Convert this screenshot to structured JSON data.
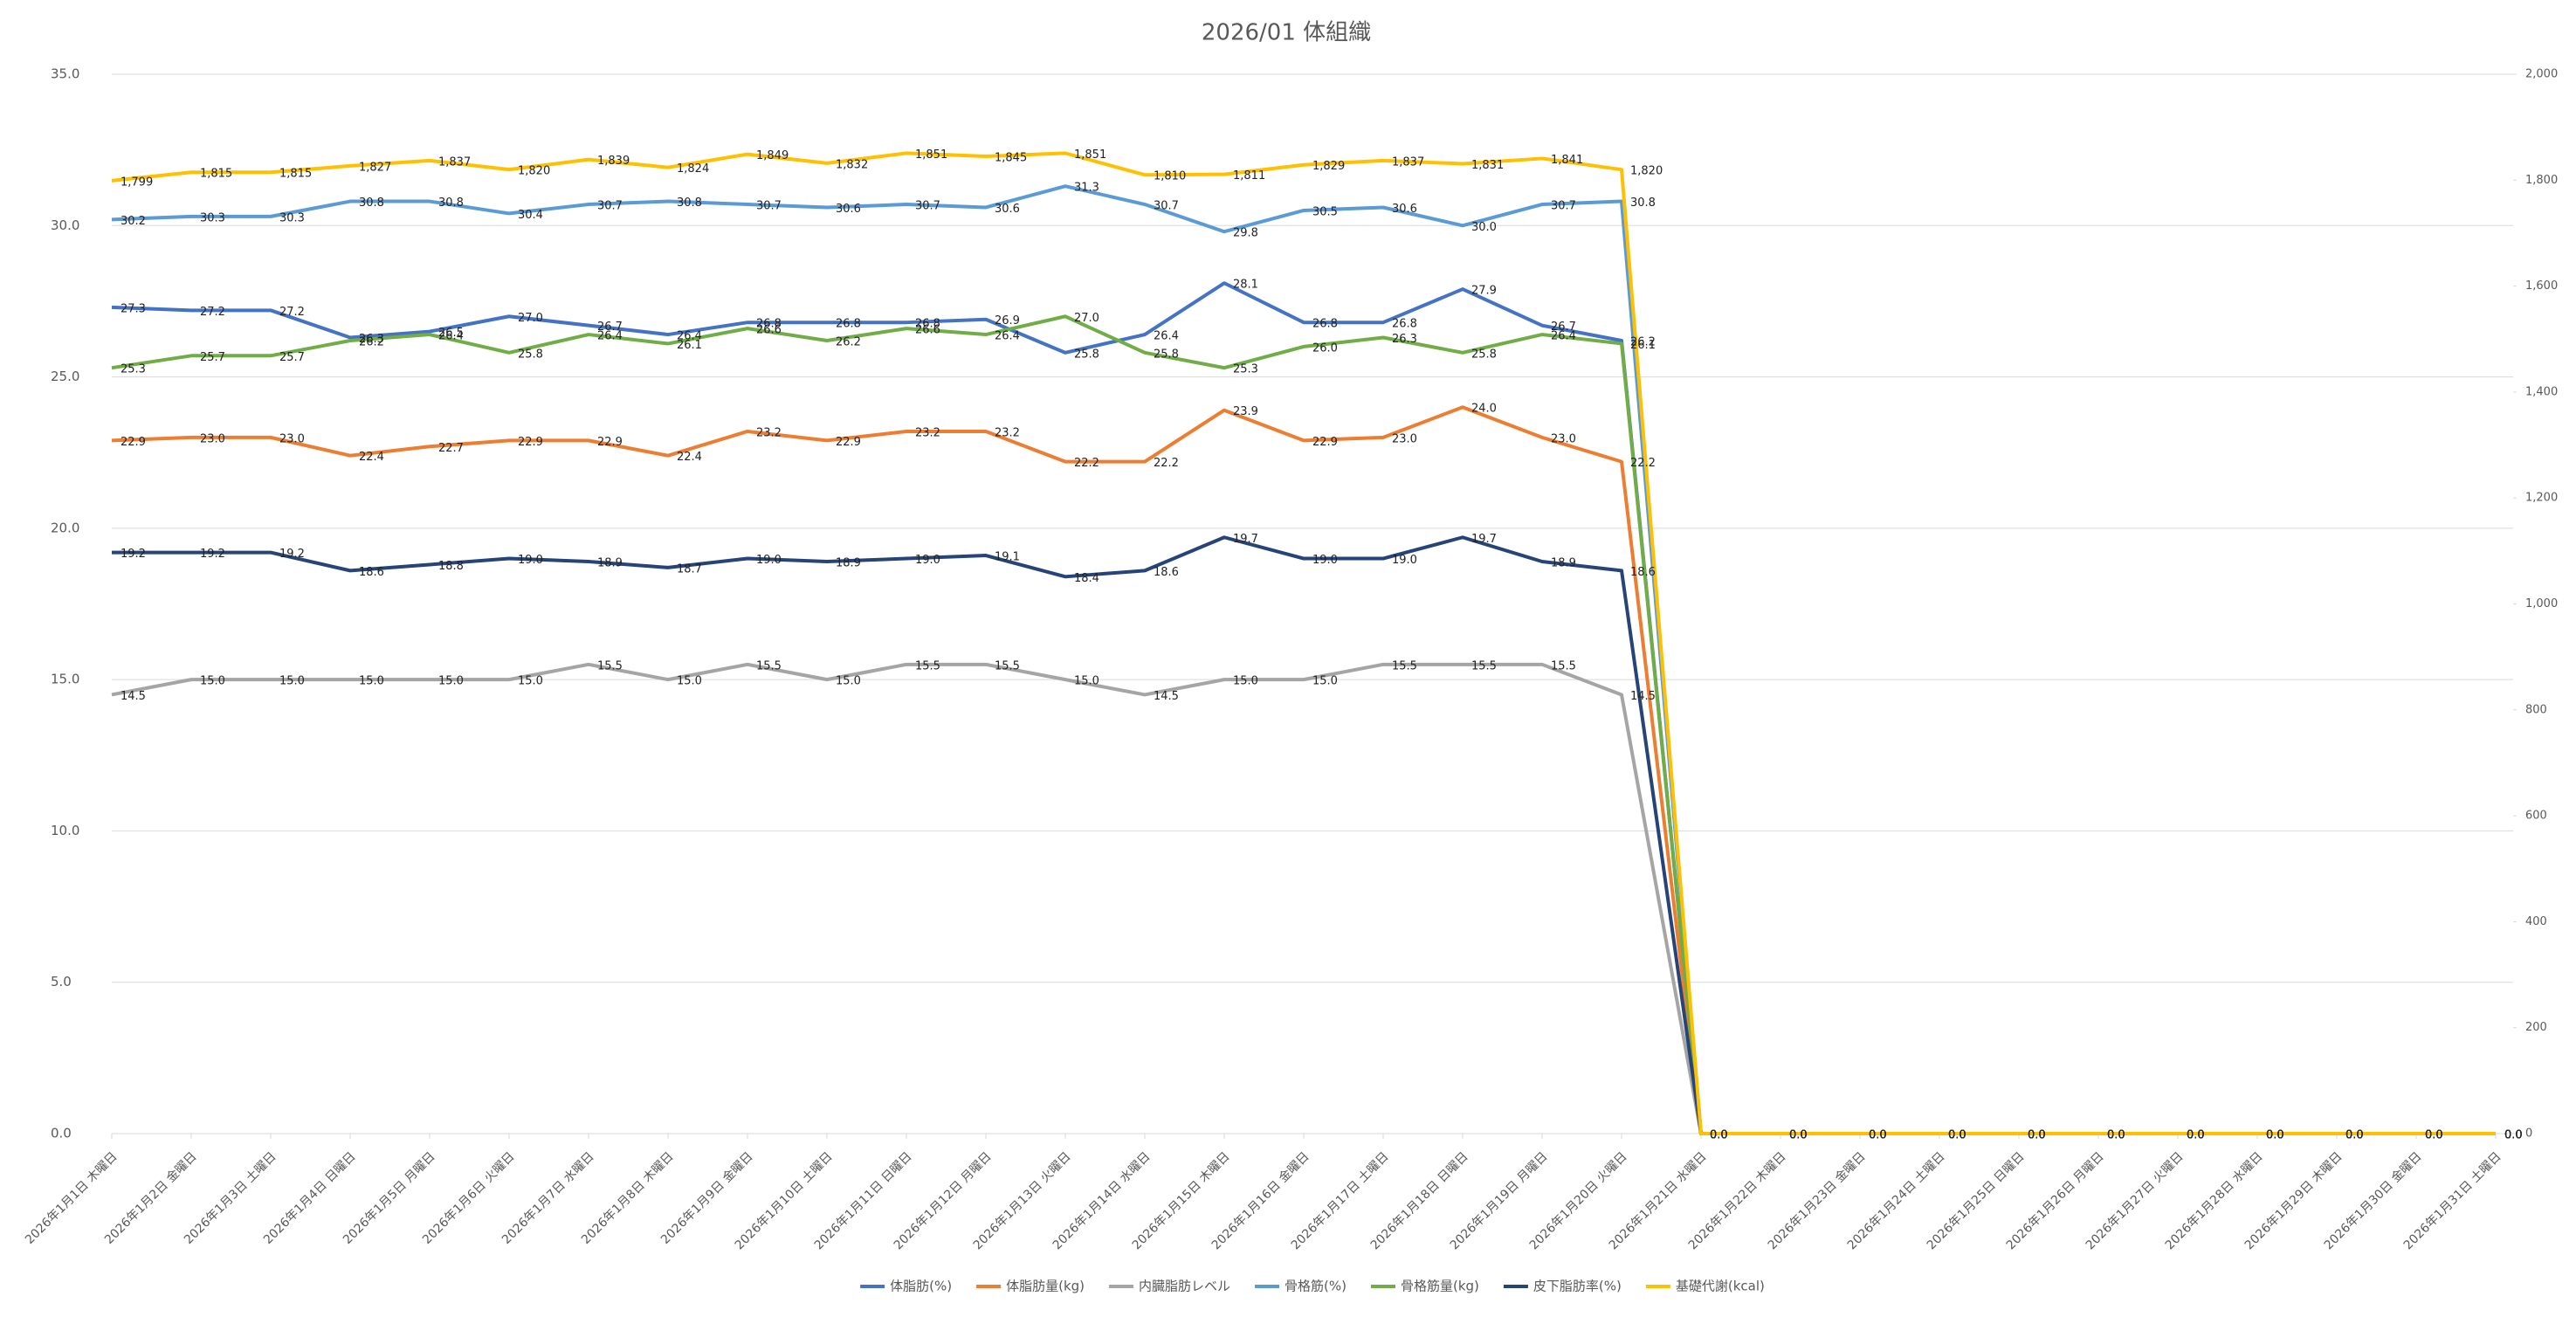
{
  "chart_data": {
    "type": "line",
    "title": "2026/01 体組織",
    "categories": [
      "2026年1月1日 木曜日",
      "2026年1月2日 金曜日",
      "2026年1月3日 土曜日",
      "2026年1月4日 日曜日",
      "2026年1月5日 月曜日",
      "2026年1月6日 火曜日",
      "2026年1月7日 水曜日",
      "2026年1月8日 木曜日",
      "2026年1月9日 金曜日",
      "2026年1月10日 土曜日",
      "2026年1月11日 日曜日",
      "2026年1月12日 月曜日",
      "2026年1月13日 火曜日",
      "2026年1月14日 水曜日",
      "2026年1月15日 木曜日",
      "2026年1月16日 金曜日",
      "2026年1月17日 土曜日",
      "2026年1月18日 日曜日",
      "2026年1月19日 月曜日",
      "2026年1月20日 火曜日",
      "2026年1月21日 水曜日",
      "2026年1月22日 木曜日",
      "2026年1月23日 金曜日",
      "2026年1月24日 土曜日",
      "2026年1月25日 日曜日",
      "2026年1月26日 月曜日",
      "2026年1月27日 火曜日",
      "2026年1月28日 水曜日",
      "2026年1月29日 木曜日",
      "2026年1月30日 金曜日",
      "2026年1月31日 土曜日"
    ],
    "ylim": [
      0,
      35
    ],
    "yticks": [
      {
        "value": 0,
        "label": "0.0"
      },
      {
        "value": 5,
        "label": "5.0"
      },
      {
        "value": 10,
        "label": "10.0"
      },
      {
        "value": 15,
        "label": "15.0"
      },
      {
        "value": 20,
        "label": "20.0"
      },
      {
        "value": 25,
        "label": "25.0"
      },
      {
        "value": 30,
        "label": "30.0"
      },
      {
        "value": 35,
        "label": "35.0"
      }
    ],
    "y2lim": [
      0,
      2000
    ],
    "y2ticks": [
      0,
      200,
      400,
      600,
      800,
      {
        "value": 1000,
        "label": "1,000"
      },
      {
        "value": 1200,
        "label": "1,200"
      },
      {
        "value": 1400,
        "label": "1,400"
      },
      {
        "value": 1600,
        "label": "1,600"
      },
      {
        "value": 1800,
        "label": "1,800"
      },
      {
        "value": 2000,
        "label": "2,000"
      }
    ],
    "grid": true,
    "legend": "bottom",
    "series": [
      {
        "name": "体脂肪(%)",
        "color": "#4472c4",
        "values": [
          27.3,
          27.2,
          27.2,
          26.3,
          26.5,
          27.0,
          26.7,
          26.4,
          26.8,
          26.8,
          26.8,
          26.9,
          25.8,
          26.4,
          28.1,
          26.8,
          26.8,
          27.9,
          26.7,
          26.2,
          0,
          0,
          0,
          0,
          0,
          0,
          0,
          0,
          0,
          0,
          0
        ],
        "value_labels": [
          "27.3",
          "27.2",
          "27.2",
          "26.3",
          "26.5",
          "27.0",
          "26.7",
          "26.4",
          "26.8",
          "26.8",
          "26.8",
          "26.9",
          "25.8",
          "26.4",
          "28.1",
          "26.8",
          "26.8",
          "27.9",
          "26.7",
          "26.2",
          "0.0",
          "0.0",
          "0.0",
          "0.0",
          "0.0",
          "0.0",
          "0.0",
          "0.0",
          "0.0",
          "0.0",
          "0.0"
        ]
      },
      {
        "name": "体脂肪量(kg)",
        "color": "#ed7d31",
        "values": [
          22.9,
          23.0,
          23.0,
          22.4,
          22.7,
          22.9,
          22.9,
          22.4,
          23.2,
          22.9,
          23.2,
          23.2,
          22.2,
          22.2,
          23.9,
          22.9,
          23.0,
          24.0,
          23.0,
          22.2,
          0,
          0,
          0,
          0,
          0,
          0,
          0,
          0,
          0,
          0,
          0
        ],
        "value_labels": [
          "22.9",
          "23.0",
          "23.0",
          "22.4",
          "22.7",
          "22.9",
          "22.9",
          "22.4",
          "23.2",
          "22.9",
          "23.2",
          "23.2",
          "22.2",
          "22.2",
          "23.9",
          "22.9",
          "23.0",
          "24.0",
          "23.0",
          "22.2",
          "0.0",
          "0.0",
          "0.0",
          "0.0",
          "0.0",
          "0.0",
          "0.0",
          "0.0",
          "0.0",
          "0.0",
          "0.0"
        ]
      },
      {
        "name": "内臓脂肪レベル",
        "color": "#a5a5a5",
        "values": [
          14.5,
          15.0,
          15.0,
          15.0,
          15.0,
          15.0,
          15.5,
          15.0,
          15.5,
          15.0,
          15.5,
          15.5,
          15.0,
          14.5,
          15.0,
          15.0,
          15.5,
          15.5,
          15.5,
          14.5,
          0,
          0,
          0,
          0,
          0,
          0,
          0,
          0,
          0,
          0,
          0
        ],
        "value_labels": [
          "14.5",
          "15.0",
          "15.0",
          "15.0",
          "15.0",
          "15.0",
          "15.5",
          "15.0",
          "15.5",
          "15.0",
          "15.5",
          "15.5",
          "15.0",
          "14.5",
          "15.0",
          "15.0",
          "15.5",
          "15.5",
          "15.5",
          "14.5",
          "0.0",
          "0.0",
          "0.0",
          "0.0",
          "0.0",
          "0.0",
          "0.0",
          "0.0",
          "0.0",
          "0.0",
          "0.0"
        ]
      },
      {
        "name": "骨格筋(%)",
        "color": "#5b9bd5",
        "values": [
          30.2,
          30.3,
          30.3,
          30.8,
          30.8,
          30.4,
          30.7,
          30.8,
          30.7,
          30.6,
          30.7,
          30.6,
          31.3,
          30.7,
          29.8,
          30.5,
          30.6,
          30.0,
          30.7,
          30.8,
          0,
          0,
          0,
          0,
          0,
          0,
          0,
          0,
          0,
          0,
          0
        ],
        "value_labels": [
          "30.2",
          "30.3",
          "30.3",
          "30.8",
          "30.8",
          "30.4",
          "30.7",
          "30.8",
          "30.7",
          "30.6",
          "30.7",
          "30.6",
          "31.3",
          "30.7",
          "29.8",
          "30.5",
          "30.6",
          "30.0",
          "30.7",
          "30.8",
          "0.0",
          "0.0",
          "0.0",
          "0.0",
          "0.0",
          "0.0",
          "0.0",
          "0.0",
          "0.0",
          "0.0",
          "0.0"
        ]
      },
      {
        "name": "骨格筋量(kg)",
        "color": "#70ad47",
        "values": [
          25.3,
          25.7,
          25.7,
          26.2,
          26.4,
          25.8,
          26.4,
          26.1,
          26.6,
          26.2,
          26.6,
          26.4,
          27.0,
          25.8,
          25.3,
          26.0,
          26.3,
          25.8,
          26.4,
          26.1,
          0,
          0,
          0,
          0,
          0,
          0,
          0,
          0,
          0,
          0,
          0
        ],
        "value_labels": [
          "25.3",
          "25.7",
          "25.7",
          "26.2",
          "26.4",
          "25.8",
          "26.4",
          "26.1",
          "26.6",
          "26.2",
          "26.6",
          "26.4",
          "27.0",
          "25.8",
          "25.3",
          "26.0",
          "26.3",
          "25.8",
          "26.4",
          "26.1",
          "0.0",
          "0.0",
          "0.0",
          "0.0",
          "0.0",
          "0.0",
          "0.0",
          "0.0",
          "0.0",
          "0.0",
          "0.0"
        ]
      },
      {
        "name": "皮下脂肪率(%)",
        "color": "#264478",
        "values": [
          19.2,
          19.2,
          19.2,
          18.6,
          18.8,
          19.0,
          18.9,
          18.7,
          19.0,
          18.9,
          19.0,
          19.1,
          18.4,
          18.6,
          19.7,
          19.0,
          19.0,
          19.7,
          18.9,
          18.6,
          0,
          0,
          0,
          0,
          0,
          0,
          0,
          0,
          0,
          0,
          0
        ],
        "value_labels": [
          "19.2",
          "19.2",
          "19.2",
          "18.6",
          "18.8",
          "19.0",
          "18.9",
          "18.7",
          "19.0",
          "18.9",
          "19.0",
          "19.1",
          "18.4",
          "18.6",
          "19.7",
          "19.0",
          "19.0",
          "19.7",
          "18.9",
          "18.6",
          "0.0",
          "0.0",
          "0.0",
          "0.0",
          "0.0",
          "0.0",
          "0.0",
          "0.0",
          "0.0",
          "0.0",
          "0.0"
        ]
      },
      {
        "name": "基礎代謝(kcal)",
        "color": "#ffc000",
        "axis": "y2",
        "values": [
          1799,
          1815,
          1815,
          1827,
          1837,
          1820,
          1839,
          1824,
          1849,
          1832,
          1851,
          1845,
          1851,
          1810,
          1811,
          1829,
          1837,
          1831,
          1841,
          1820,
          0,
          0,
          0,
          0,
          0,
          0,
          0,
          0,
          0,
          0,
          0
        ],
        "value_labels": [
          "1,799",
          "1,815",
          "1,815",
          "1,827",
          "1,837",
          "1,820",
          "1,839",
          "1,824",
          "1,849",
          "1,832",
          "1,851",
          "1,845",
          "1,851",
          "1,810",
          "1,811",
          "1,829",
          "1,837",
          "1,831",
          "1,841",
          "1,820",
          "0",
          "0",
          "0",
          "0",
          "0",
          "0",
          "0",
          "0",
          "0",
          "0",
          "0"
        ]
      }
    ]
  }
}
